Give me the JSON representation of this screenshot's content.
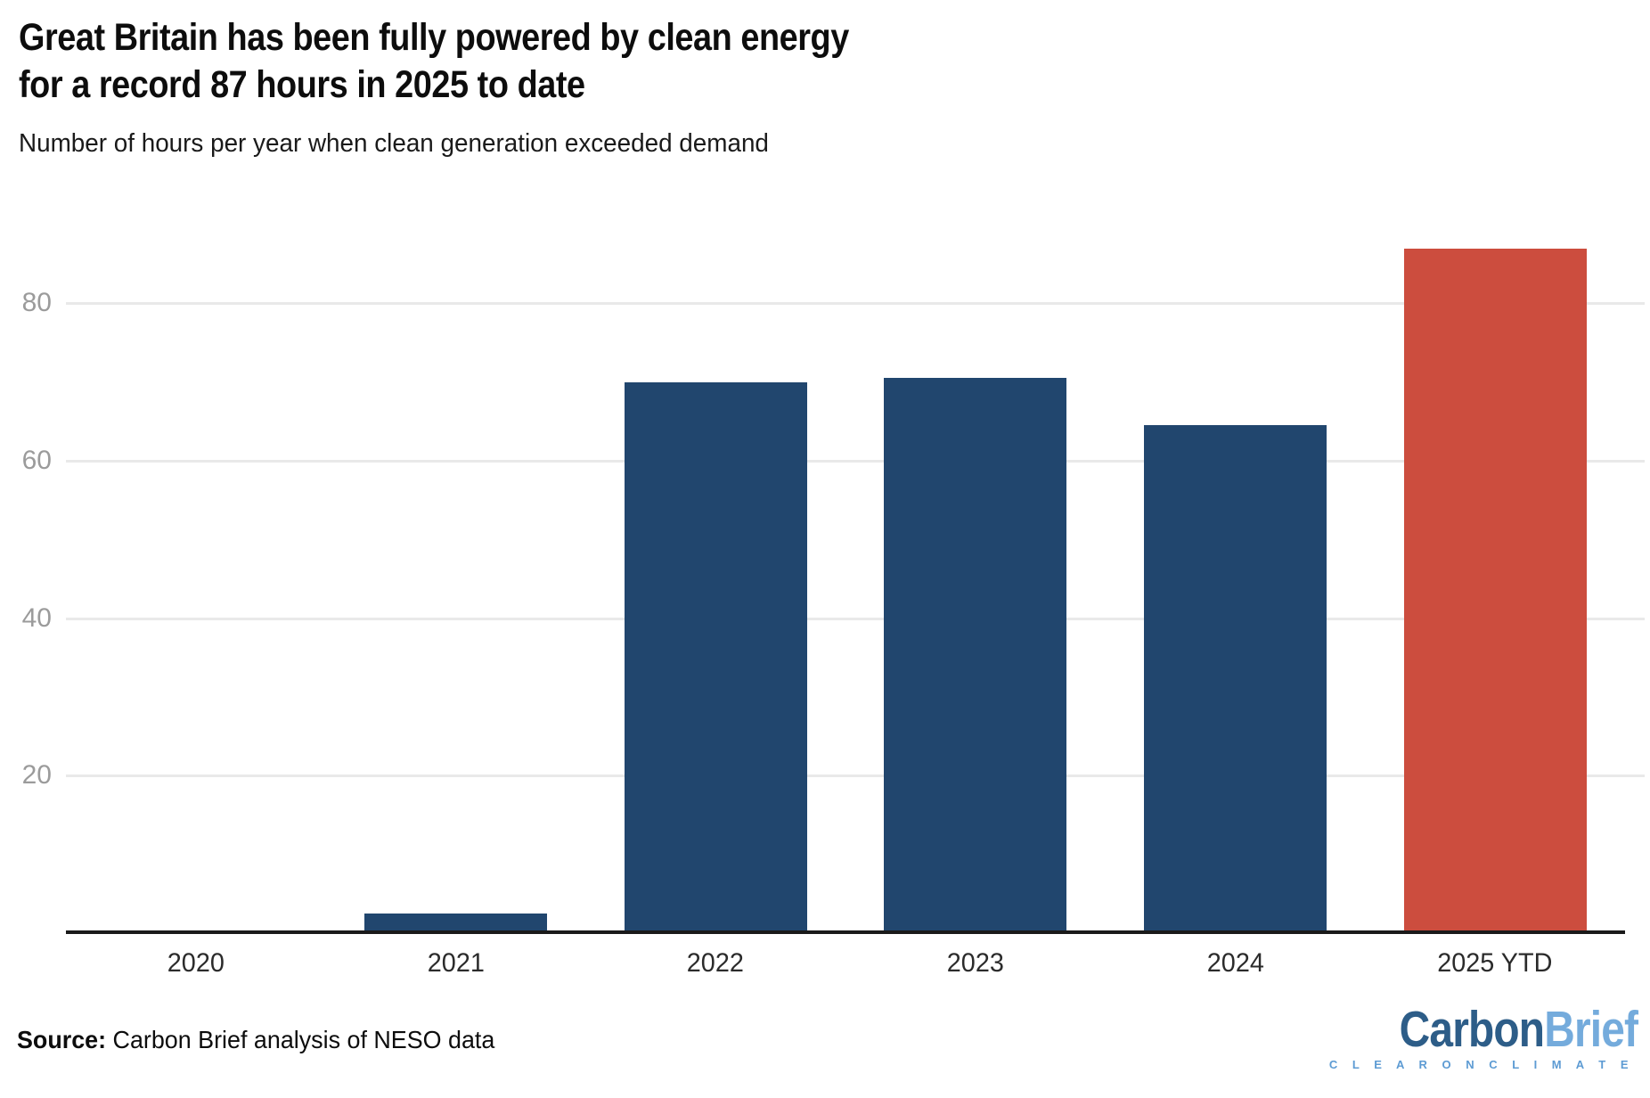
{
  "header": {
    "title_line1": "Great Britain has been fully powered by clean energy",
    "title_line2": "for a record 87 hours in 2025 to date",
    "subtitle": "Number of hours per year when clean generation exceeded demand"
  },
  "chart_data": {
    "type": "bar",
    "title": "Great Britain has been fully powered by clean energy for a record 87 hours in 2025 to date",
    "subtitle": "Number of hours per year when clean generation exceeded demand",
    "categories": [
      "2020",
      "2021",
      "2022",
      "2023",
      "2024",
      "2025 YTD"
    ],
    "values": [
      0,
      2.5,
      70,
      70.5,
      64.5,
      87
    ],
    "xlabel": "",
    "ylabel": "",
    "ylim": [
      0,
      92.5
    ],
    "yticks": [
      20,
      40,
      60,
      80
    ],
    "grid": "horizontal",
    "legend": "none",
    "highlight_index": 5,
    "colors": {
      "bar": "#21466e",
      "highlight": "#cc4d3e",
      "gridline": "#e9e9e9",
      "axis_line": "#1a1a1a",
      "y_tick_label": "#9b9b9b",
      "x_tick_label": "#2b2b2b"
    }
  },
  "footer": {
    "source_label": "Source:",
    "source_text": " Carbon Brief analysis of NESO data"
  },
  "logo": {
    "part1": "Carbon",
    "part2": "Brief",
    "tagline": "C L E A R   O N   C L I M A T E",
    "colors": {
      "part1": "#2d5d88",
      "part2": "#74abdc",
      "tagline": "#5d9bd3"
    }
  }
}
